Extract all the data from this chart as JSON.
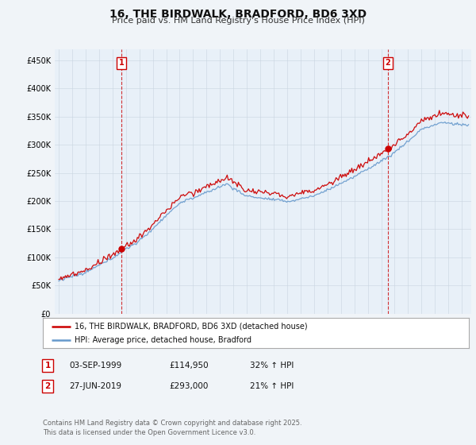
{
  "title": "16, THE BIRDWALK, BRADFORD, BD6 3XD",
  "subtitle": "Price paid vs. HM Land Registry's House Price Index (HPI)",
  "ylim": [
    0,
    470000
  ],
  "yticks": [
    0,
    50000,
    100000,
    150000,
    200000,
    250000,
    300000,
    350000,
    400000,
    450000
  ],
  "red_color": "#cc0000",
  "blue_color": "#6699cc",
  "marker1_year": 1999.67,
  "marker1_value": 114950,
  "marker2_year": 2019.5,
  "marker2_value": 293000,
  "legend_red_label": "16, THE BIRDWALK, BRADFORD, BD6 3XD (detached house)",
  "legend_blue_label": "HPI: Average price, detached house, Bradford",
  "table_rows": [
    {
      "num": "1",
      "date": "03-SEP-1999",
      "price": "£114,950",
      "change": "32% ↑ HPI"
    },
    {
      "num": "2",
      "date": "27-JUN-2019",
      "price": "£293,000",
      "change": "21% ↑ HPI"
    }
  ],
  "footer": "Contains HM Land Registry data © Crown copyright and database right 2025.\nThis data is licensed under the Open Government Licence v3.0.",
  "background_color": "#f0f4f8",
  "plot_bg_color": "#e8f0f8"
}
